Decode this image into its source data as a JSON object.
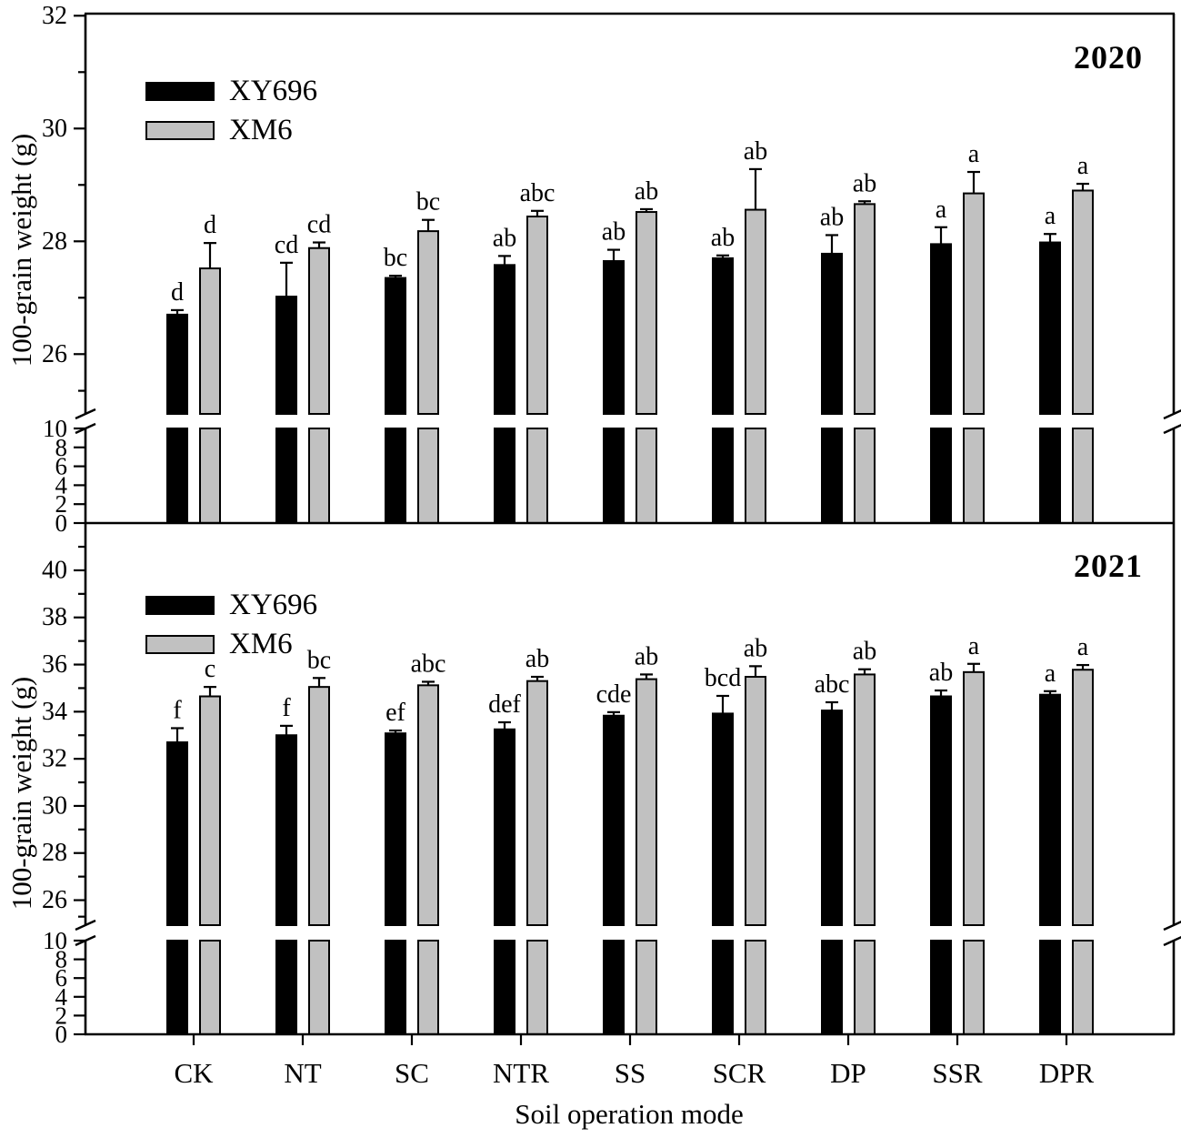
{
  "figure": {
    "xlabel": "Soil operation mode",
    "ylabel": "100-grain weight (g)",
    "legend": [
      {
        "label": "XY696",
        "color": "#000000"
      },
      {
        "label": "XM6",
        "color": "#c1c1c1"
      }
    ],
    "background": "#ffffff",
    "axis_color": "#000000"
  },
  "chart_data": [
    {
      "type": "bar",
      "title": "2020",
      "ylabel": "100-grain weight (g)",
      "categories": [
        "CK",
        "NT",
        "SC",
        "NTR",
        "SS",
        "SCR",
        "DP",
        "SSR",
        "DPR"
      ],
      "series": [
        {
          "name": "XY696",
          "color": "#000000",
          "values": [
            26.7,
            27.02,
            27.35,
            27.58,
            27.65,
            27.7,
            27.78,
            27.95,
            27.98
          ],
          "errors": [
            0.08,
            0.6,
            0.04,
            0.16,
            0.2,
            0.05,
            0.33,
            0.3,
            0.15
          ],
          "letters": [
            "d",
            "cd",
            "bc",
            "ab",
            "ab",
            "ab",
            "ab",
            "a",
            "a"
          ]
        },
        {
          "name": "XM6",
          "color": "#c1c1c1",
          "values": [
            27.52,
            27.88,
            28.18,
            28.44,
            28.52,
            28.56,
            28.66,
            28.85,
            28.9
          ],
          "errors": [
            0.45,
            0.1,
            0.2,
            0.1,
            0.05,
            0.72,
            0.05,
            0.38,
            0.12
          ],
          "letters": [
            "d",
            "cd",
            "bc",
            "abc",
            "ab",
            "ab",
            "ab",
            "a",
            "a"
          ]
        }
      ],
      "broken_axis": {
        "upper_range": [
          25,
          32
        ],
        "upper_major_ticks": [
          26,
          28,
          30,
          32
        ],
        "upper_minor_ticks": [
          27,
          29,
          31
        ],
        "lower_range": [
          0,
          10
        ],
        "lower_ticks": [
          0,
          2,
          4,
          6,
          8,
          10
        ]
      },
      "legend_position": "inside-top-left",
      "grid": false
    },
    {
      "type": "bar",
      "title": "2021",
      "ylabel": "100-grain weight (g)",
      "categories": [
        "CK",
        "NT",
        "SC",
        "NTR",
        "SS",
        "SCR",
        "DP",
        "SSR",
        "DPR"
      ],
      "series": [
        {
          "name": "XY696",
          "color": "#000000",
          "values": [
            32.7,
            33.0,
            33.08,
            33.25,
            33.83,
            33.92,
            34.05,
            34.65,
            34.72
          ],
          "errors": [
            0.6,
            0.4,
            0.12,
            0.3,
            0.15,
            0.75,
            0.35,
            0.25,
            0.15
          ],
          "letters": [
            "f",
            "f",
            "ef",
            "def",
            "cde",
            "bcd",
            "abc",
            "ab",
            "a"
          ]
        },
        {
          "name": "XM6",
          "color": "#c1c1c1",
          "values": [
            34.65,
            35.05,
            35.12,
            35.3,
            35.38,
            35.48,
            35.58,
            35.68,
            35.78
          ],
          "errors": [
            0.4,
            0.38,
            0.15,
            0.18,
            0.2,
            0.45,
            0.22,
            0.35,
            0.2
          ],
          "letters": [
            "c",
            "bc",
            "abc",
            "ab",
            "ab",
            "ab",
            "ab",
            "a",
            "a"
          ]
        }
      ],
      "broken_axis": {
        "upper_range": [
          25,
          42
        ],
        "upper_major_ticks": [
          26,
          28,
          30,
          32,
          34,
          36,
          38,
          40
        ],
        "upper_minor_ticks": [
          27,
          29,
          31,
          33,
          35,
          37,
          39,
          41
        ],
        "lower_range": [
          0,
          10
        ],
        "lower_ticks": [
          0,
          2,
          4,
          6,
          8,
          10
        ]
      },
      "legend_position": "inside-top-left",
      "grid": false
    }
  ]
}
